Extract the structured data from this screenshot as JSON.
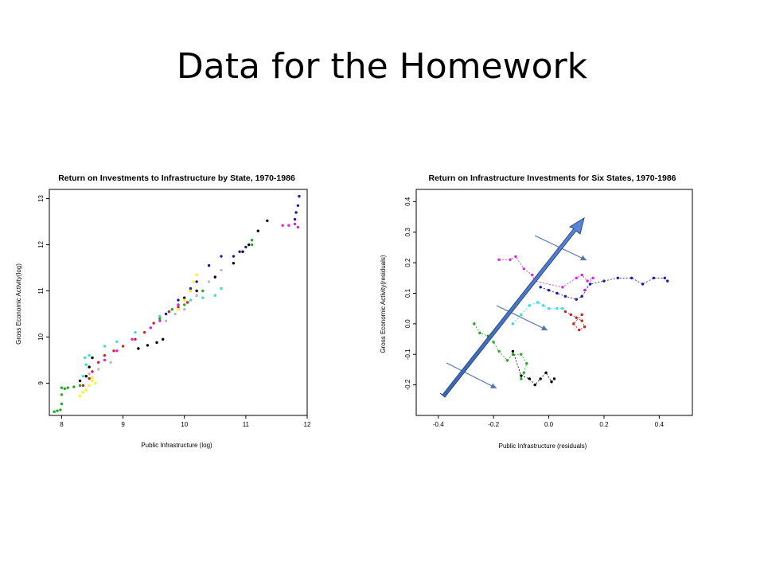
{
  "slide": {
    "title": "Data for the Homework"
  },
  "chart_data": [
    {
      "type": "scatter",
      "title": "Return on Investments to Infrastructure by State, 1970-1986",
      "xlabel": "Public Infrastructure (log)",
      "ylabel": "Gross Economic Activity(log)",
      "xlim": [
        7.8,
        12.0
      ],
      "ylim": [
        8.3,
        13.2
      ],
      "xticks": [
        "8",
        "9",
        "10",
        "11",
        "12"
      ],
      "yticks": [
        "9",
        "10",
        "11",
        "12",
        "13"
      ],
      "series": [
        {
          "color": "#22aa22",
          "points": [
            [
              7.88,
              8.38
            ],
            [
              7.93,
              8.4
            ],
            [
              7.98,
              8.42
            ],
            [
              8.0,
              8.55
            ],
            [
              8.0,
              8.75
            ],
            [
              8.0,
              8.9
            ],
            [
              8.05,
              8.88
            ],
            [
              8.1,
              8.9
            ],
            [
              8.2,
              8.92
            ],
            [
              8.3,
              8.95
            ]
          ]
        },
        {
          "color": "#ffee22",
          "points": [
            [
              8.3,
              8.72
            ],
            [
              8.35,
              8.8
            ],
            [
              8.4,
              8.85
            ],
            [
              8.45,
              8.95
            ],
            [
              8.5,
              9.05
            ],
            [
              8.55,
              9.0
            ],
            [
              8.5,
              9.12
            ]
          ]
        },
        {
          "color": "#cc2222",
          "points": [
            [
              8.35,
              8.95
            ],
            [
              8.45,
              9.1
            ],
            [
              8.5,
              9.25
            ],
            [
              8.6,
              9.45
            ],
            [
              8.7,
              9.6
            ],
            [
              8.85,
              9.7
            ],
            [
              9.0,
              9.8
            ],
            [
              9.2,
              9.95
            ],
            [
              9.35,
              10.1
            ],
            [
              9.5,
              10.3
            ],
            [
              9.6,
              10.4
            ],
            [
              9.75,
              10.55
            ],
            [
              9.9,
              10.65
            ],
            [
              10.05,
              10.75
            ],
            [
              10.2,
              10.9
            ]
          ]
        },
        {
          "color": "#000000",
          "points": [
            [
              8.3,
              9.05
            ],
            [
              8.4,
              9.15
            ],
            [
              8.45,
              9.35
            ],
            [
              8.5,
              9.55
            ],
            [
              9.25,
              9.75
            ],
            [
              9.4,
              9.82
            ],
            [
              9.55,
              9.88
            ],
            [
              9.65,
              9.95
            ],
            [
              10.0,
              10.85
            ],
            [
              10.2,
              11.0
            ],
            [
              10.5,
              11.3
            ],
            [
              10.8,
              11.6
            ],
            [
              10.95,
              11.85
            ],
            [
              11.05,
              12.0
            ],
            [
              11.2,
              12.3
            ],
            [
              11.35,
              12.52
            ]
          ]
        },
        {
          "color": "#bbbbbb",
          "points": [
            [
              8.45,
              9.2
            ],
            [
              8.6,
              9.3
            ],
            [
              8.8,
              9.45
            ],
            [
              9.7,
              10.35
            ],
            [
              9.85,
              10.5
            ],
            [
              10.0,
              10.6
            ],
            [
              10.2,
              10.9
            ],
            [
              10.4,
              11.2
            ],
            [
              10.6,
              11.45
            ]
          ]
        },
        {
          "color": "#33dddd",
          "points": [
            [
              8.35,
              9.15
            ],
            [
              8.4,
              9.4
            ],
            [
              8.38,
              9.55
            ],
            [
              8.45,
              9.6
            ],
            [
              8.7,
              9.8
            ],
            [
              8.9,
              9.9
            ],
            [
              9.2,
              10.1
            ],
            [
              9.6,
              10.45
            ],
            [
              9.9,
              10.7
            ],
            [
              10.1,
              10.8
            ],
            [
              10.3,
              10.85
            ],
            [
              10.5,
              10.9
            ],
            [
              10.6,
              11.05
            ]
          ]
        },
        {
          "color": "#dd22dd",
          "points": [
            [
              8.7,
              9.5
            ],
            [
              8.9,
              9.7
            ],
            [
              9.15,
              9.95
            ],
            [
              9.45,
              10.2
            ],
            [
              9.6,
              10.35
            ],
            [
              9.9,
              10.7
            ],
            [
              10.1,
              11.0
            ],
            [
              11.6,
              12.42
            ],
            [
              11.7,
              12.42
            ],
            [
              11.8,
              12.45
            ],
            [
              11.85,
              12.38
            ]
          ]
        },
        {
          "color": "#1a1aaa",
          "points": [
            [
              9.7,
              10.5
            ],
            [
              9.9,
              10.8
            ],
            [
              10.1,
              11.05
            ],
            [
              10.2,
              11.2
            ],
            [
              10.4,
              11.55
            ],
            [
              10.6,
              11.75
            ],
            [
              10.8,
              11.75
            ],
            [
              10.9,
              11.85
            ],
            [
              11.0,
              11.95
            ],
            [
              11.8,
              12.55
            ],
            [
              11.82,
              12.7
            ],
            [
              11.85,
              12.85
            ],
            [
              11.87,
              13.05
            ]
          ]
        },
        {
          "color": "#ffee22",
          "points": [
            [
              9.9,
              10.6
            ],
            [
              10.0,
              10.8
            ],
            [
              10.1,
              11.0
            ],
            [
              10.15,
              11.2
            ],
            [
              10.2,
              11.35
            ]
          ]
        },
        {
          "color": "#22aa22",
          "points": [
            [
              9.6,
              10.4
            ],
            [
              9.8,
              10.6
            ],
            [
              10.0,
              10.7
            ],
            [
              10.3,
              11.0
            ],
            [
              11.1,
              12.0
            ],
            [
              11.1,
              12.1
            ]
          ]
        }
      ]
    },
    {
      "type": "scatter",
      "title": "Return on Infrastructure Investments for Six States, 1970-1986",
      "xlabel": "Public Infrastructure (residuals)",
      "ylabel": "Gross Economic Activity(residuals)",
      "xlim": [
        -0.48,
        0.52
      ],
      "ylim": [
        -0.3,
        0.44
      ],
      "xticks": [
        "-0.4",
        "-0.2",
        "0.0",
        "0.2",
        "0.4"
      ],
      "yticks": [
        "-0.2",
        "-0.1",
        "0.0",
        "0.1",
        "0.2",
        "0.3",
        "0.4"
      ],
      "series": [
        {
          "color": "#22aa22",
          "points": [
            [
              -0.27,
              0.0
            ],
            [
              -0.25,
              -0.03
            ],
            [
              -0.22,
              -0.04
            ],
            [
              -0.2,
              -0.06
            ],
            [
              -0.18,
              -0.09
            ],
            [
              -0.15,
              -0.12
            ],
            [
              -0.13,
              -0.1
            ],
            [
              -0.1,
              -0.1
            ],
            [
              -0.08,
              -0.13
            ],
            [
              -0.09,
              -0.16
            ],
            [
              -0.1,
              -0.18
            ]
          ]
        },
        {
          "color": "#000000",
          "points": [
            [
              -0.13,
              -0.09
            ],
            [
              -0.1,
              -0.17
            ],
            [
              -0.07,
              -0.18
            ],
            [
              -0.05,
              -0.2
            ],
            [
              -0.03,
              -0.18
            ],
            [
              -0.01,
              -0.16
            ],
            [
              0.01,
              -0.19
            ],
            [
              0.02,
              -0.18
            ]
          ]
        },
        {
          "color": "#33dddd",
          "points": [
            [
              -0.13,
              0.0
            ],
            [
              -0.1,
              0.03
            ],
            [
              -0.07,
              0.06
            ],
            [
              -0.04,
              0.07
            ],
            [
              -0.02,
              0.06
            ],
            [
              0.0,
              0.05
            ],
            [
              0.03,
              0.05
            ],
            [
              0.05,
              0.05
            ]
          ]
        },
        {
          "color": "#cc2222",
          "points": [
            [
              0.06,
              0.04
            ],
            [
              0.08,
              0.03
            ],
            [
              0.1,
              0.02
            ],
            [
              0.12,
              0.01
            ],
            [
              0.13,
              -0.01
            ],
            [
              0.11,
              -0.02
            ],
            [
              0.09,
              0.0
            ],
            [
              0.12,
              0.03
            ]
          ]
        },
        {
          "color": "#dd22dd",
          "points": [
            [
              -0.18,
              0.21
            ],
            [
              -0.14,
              0.21
            ],
            [
              -0.12,
              0.22
            ],
            [
              -0.09,
              0.18
            ],
            [
              -0.06,
              0.16
            ],
            [
              -0.05,
              0.14
            ],
            [
              0.05,
              0.12
            ],
            [
              0.1,
              0.15
            ],
            [
              0.12,
              0.16
            ],
            [
              0.14,
              0.14
            ],
            [
              0.16,
              0.15
            ],
            [
              0.13,
              0.11
            ]
          ]
        },
        {
          "color": "#1a1aaa",
          "points": [
            [
              -0.03,
              0.12
            ],
            [
              0.0,
              0.11
            ],
            [
              0.03,
              0.1
            ],
            [
              0.06,
              0.09
            ],
            [
              0.1,
              0.08
            ],
            [
              0.12,
              0.09
            ],
            [
              0.15,
              0.13
            ],
            [
              0.2,
              0.14
            ],
            [
              0.25,
              0.15
            ],
            [
              0.3,
              0.15
            ],
            [
              0.34,
              0.13
            ],
            [
              0.38,
              0.15
            ],
            [
              0.42,
              0.15
            ],
            [
              0.43,
              0.14
            ]
          ]
        }
      ]
    }
  ]
}
